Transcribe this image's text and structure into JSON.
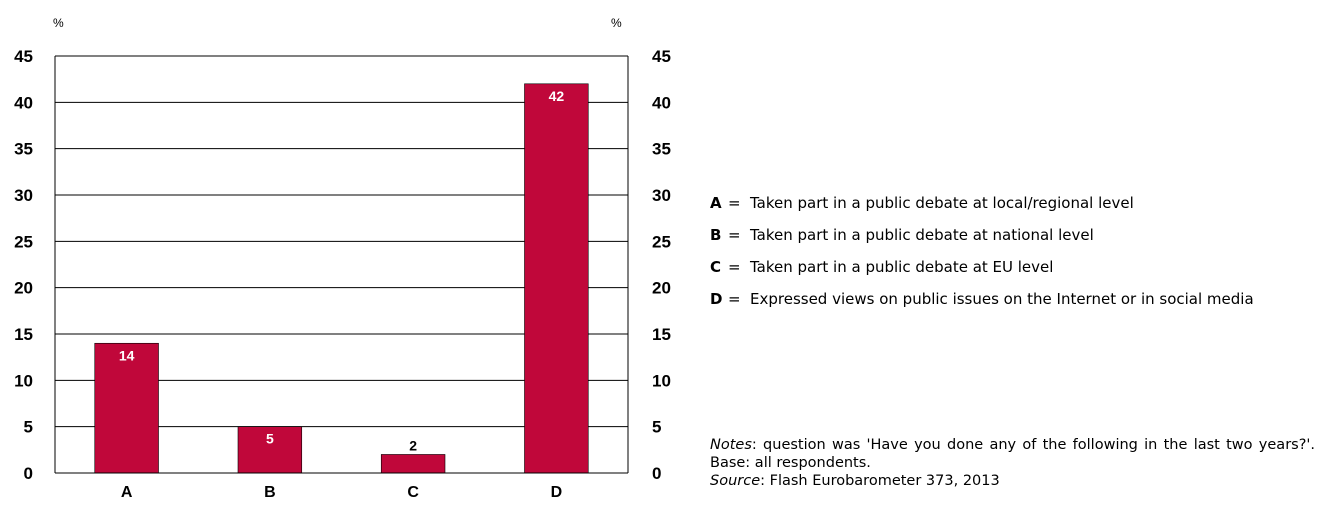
{
  "chart_data": {
    "type": "bar",
    "categories": [
      "A",
      "B",
      "C",
      "D"
    ],
    "values": [
      14,
      5,
      2,
      42
    ],
    "data_labels": [
      "14",
      "5",
      "2",
      "42"
    ],
    "ylim": [
      0,
      45
    ],
    "yticks": [
      0,
      5,
      10,
      15,
      20,
      25,
      30,
      35,
      40,
      45
    ],
    "ylabel": "%",
    "ylabel_right": "%",
    "grid": true,
    "bar_color": "#c0073a",
    "legend": [
      {
        "key": "A",
        "eq": "=",
        "text": "Taken part in a public debate at local/regional level"
      },
      {
        "key": "B",
        "eq": "=",
        "text": "Taken part in a public debate at national level"
      },
      {
        "key": "C",
        "eq": "=",
        "text": "Taken part in a public debate at EU level"
      },
      {
        "key": "D",
        "eq": "=",
        "text": "Expressed views on public issues on the Internet or in social media"
      }
    ],
    "notes": {
      "label": "Notes",
      "text": ": question was 'Have you done any of the following in the last two years?'. Base: all respondents.",
      "source_label": "Source",
      "source_text": ": Flash Eurobarometer 373, 2013"
    }
  }
}
